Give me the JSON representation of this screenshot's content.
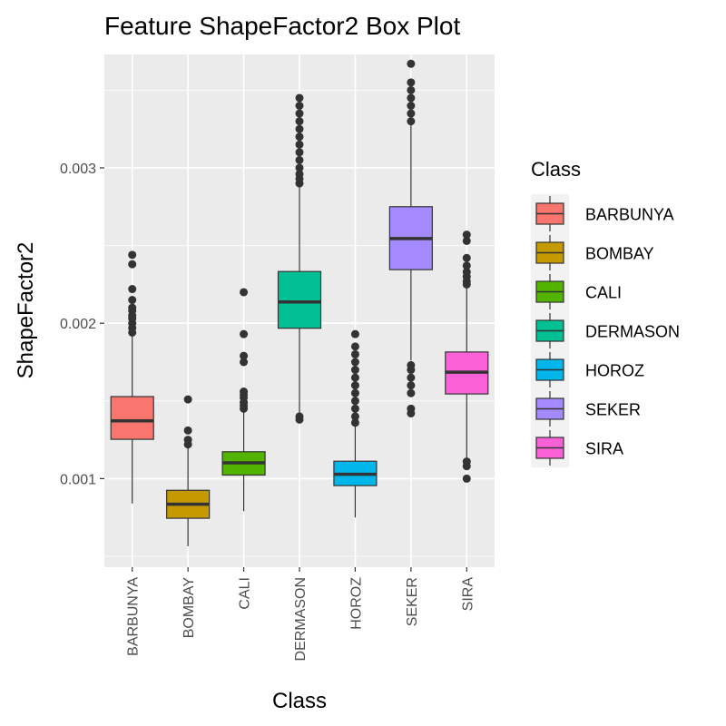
{
  "chart_data": {
    "type": "boxplot",
    "title": "Feature ShapeFactor2 Box Plot",
    "xlabel": "Class",
    "ylabel": "ShapeFactor2",
    "ylim": [
      0.00043,
      0.00373
    ],
    "yticks": [
      0.001,
      0.002,
      0.003
    ],
    "ytick_labels": [
      "0.001",
      "0.002",
      "0.003"
    ],
    "grid": true,
    "legend": {
      "title": "Class",
      "position": "right"
    },
    "categories": [
      "BARBUNYA",
      "BOMBAY",
      "CALI",
      "DERMASON",
      "HOROZ",
      "SEKER",
      "SIRA"
    ],
    "series": [
      {
        "name": "BARBUNYA",
        "color": "#F8766D",
        "whisker_low": 0.00084,
        "q1": 0.001253,
        "median": 0.001372,
        "q3": 0.001528,
        "whisker_high": 0.00193,
        "outliers": [
          0.00194,
          0.00197,
          0.002,
          0.00203,
          0.00205,
          0.00208,
          0.0021,
          0.00215,
          0.00222,
          0.00238,
          0.00244
        ]
      },
      {
        "name": "BOMBAY",
        "color": "#C49A00",
        "whisker_low": 0.000565,
        "q1": 0.000745,
        "median": 0.000835,
        "q3": 0.000925,
        "whisker_high": 0.00121,
        "outliers": [
          0.00122,
          0.00125,
          0.00131,
          0.00151
        ]
      },
      {
        "name": "CALI",
        "color": "#53B400",
        "whisker_low": 0.00079,
        "q1": 0.001023,
        "median": 0.001102,
        "q3": 0.001173,
        "whisker_high": 0.00144,
        "outliers": [
          0.00145,
          0.00147,
          0.00149,
          0.00152,
          0.00154,
          0.00156,
          0.00175,
          0.00179,
          0.00193,
          0.0022
        ]
      },
      {
        "name": "DERMASON",
        "color": "#00C094",
        "whisker_low": 0.00141,
        "q1": 0.001968,
        "median": 0.002137,
        "q3": 0.002333,
        "whisker_high": 0.00289,
        "outliers": [
          0.00138,
          0.0014,
          0.0029,
          0.00293,
          0.00296,
          0.003,
          0.00305,
          0.0031,
          0.00315,
          0.0032,
          0.00325,
          0.0033,
          0.00335,
          0.0034,
          0.00345
        ]
      },
      {
        "name": "HOROZ",
        "color": "#00B6EB",
        "whisker_low": 0.00075,
        "q1": 0.000955,
        "median": 0.001028,
        "q3": 0.001112,
        "whisker_high": 0.00135,
        "outliers": [
          0.00136,
          0.0014,
          0.00145,
          0.0015,
          0.00155,
          0.0016,
          0.00165,
          0.0017,
          0.00175,
          0.0018,
          0.00185,
          0.00193
        ]
      },
      {
        "name": "SEKER",
        "color": "#A58AFF",
        "whisker_low": 0.00176,
        "q1": 0.002345,
        "median": 0.002545,
        "q3": 0.00275,
        "whisker_high": 0.00329,
        "outliers": [
          0.00142,
          0.00145,
          0.00155,
          0.0016,
          0.00165,
          0.0017,
          0.00173,
          0.0033,
          0.00335,
          0.0034,
          0.00345,
          0.0035,
          0.00355,
          0.00367
        ]
      },
      {
        "name": "SIRA",
        "color": "#FB61D7",
        "whisker_low": 0.00112,
        "q1": 0.001545,
        "median": 0.001685,
        "q3": 0.001815,
        "whisker_high": 0.00224,
        "outliers": [
          0.001,
          0.00108,
          0.00111,
          0.00225,
          0.00227,
          0.0023,
          0.00233,
          0.00237,
          0.00242,
          0.00253,
          0.00257
        ]
      }
    ]
  }
}
